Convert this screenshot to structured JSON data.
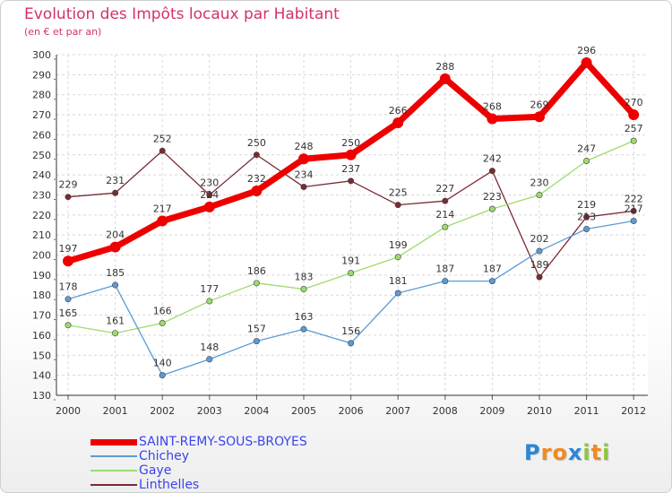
{
  "title": "Evolution des Impôts locaux par Habitant",
  "subtitle": "(en € et par an)",
  "logo": {
    "text": "Proxiti",
    "letters": [
      {
        "ch": "P",
        "color": "#2c86d6"
      },
      {
        "ch": "r",
        "color": "#f08a24"
      },
      {
        "ch": "o",
        "color": "#f08a24"
      },
      {
        "ch": "x",
        "color": "#2c86d6"
      },
      {
        "ch": "i",
        "color": "#8dc63f"
      },
      {
        "ch": "t",
        "color": "#f08a24"
      },
      {
        "ch": "i",
        "color": "#8dc63f"
      }
    ]
  },
  "chart_data": {
    "type": "line",
    "title": "Evolution des Impôts locaux par Habitant",
    "subtitle": "(en € et par an)",
    "xlabel": "",
    "ylabel": "",
    "x": [
      "2000",
      "2001",
      "2002",
      "2003",
      "2004",
      "2005",
      "2006",
      "2007",
      "2008",
      "2009",
      "2010",
      "2011",
      "2012"
    ],
    "ylim": [
      130,
      300
    ],
    "yticks": [
      130,
      140,
      150,
      160,
      170,
      180,
      190,
      200,
      210,
      220,
      230,
      240,
      250,
      260,
      270,
      280,
      290,
      300
    ],
    "grid": true,
    "legend": "bottom-left",
    "series": [
      {
        "name": "SAINT-REMY-SOUS-BROYES",
        "color": "#ee0000",
        "values": [
          197,
          204,
          217,
          224,
          232,
          248,
          250,
          266,
          288,
          268,
          269,
          296,
          270
        ]
      },
      {
        "name": "Chichey",
        "color": "#5b9bd5",
        "values": [
          178,
          185,
          140,
          148,
          157,
          163,
          156,
          181,
          187,
          187,
          202,
          213,
          217
        ]
      },
      {
        "name": "Gaye",
        "color": "#9bdc6b",
        "values": [
          165,
          161,
          166,
          177,
          186,
          183,
          191,
          199,
          214,
          223,
          230,
          247,
          257
        ]
      },
      {
        "name": "Linthelles",
        "color": "#7a2a33",
        "values": [
          229,
          231,
          252,
          230,
          250,
          234,
          237,
          225,
          227,
          242,
          189,
          219,
          222
        ]
      }
    ]
  }
}
